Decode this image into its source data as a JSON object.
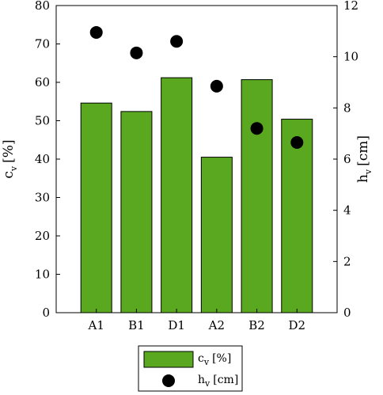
{
  "chart_data": {
    "type": "bar",
    "categories": [
      "A1",
      "B1",
      "D1",
      "A2",
      "B2",
      "D2"
    ],
    "series": [
      {
        "name": "c_v [%]",
        "kind": "bar",
        "axis": "left",
        "color": "#5aa81f",
        "values": [
          54.6,
          52.4,
          61.2,
          40.5,
          60.7,
          50.4
        ]
      },
      {
        "name": "h_v [cm]",
        "kind": "scatter",
        "axis": "right",
        "color": "#000000",
        "values": [
          10.95,
          10.15,
          10.6,
          8.85,
          7.2,
          6.65
        ]
      }
    ],
    "y_left": {
      "label_main": "c",
      "label_sub": "v",
      "label_unit": "[%]",
      "lim": [
        0,
        80
      ],
      "ticks": [
        0,
        10,
        20,
        30,
        40,
        50,
        60,
        70,
        80
      ]
    },
    "y_right": {
      "label_main": "h",
      "label_sub": "v",
      "label_unit": "[cm]",
      "lim": [
        0,
        12
      ],
      "ticks": [
        0,
        2,
        4,
        6,
        8,
        10,
        12
      ]
    },
    "legend": {
      "placement": "bottom",
      "entries": [
        {
          "main": "c",
          "sub": "v",
          "unit": "[%]",
          "kind": "bar"
        },
        {
          "main": "h",
          "sub": "v",
          "unit": "[cm]",
          "kind": "scatter"
        }
      ]
    },
    "grid": false
  }
}
